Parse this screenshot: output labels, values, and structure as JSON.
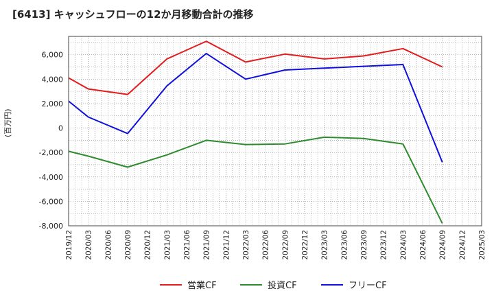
{
  "chart_data": {
    "type": "line",
    "title": "[6413]  キャッシュフローの12か月移動合計の推移",
    "ylabel": "(百万円)",
    "xlabel": "",
    "ylim": [
      -8000,
      7500
    ],
    "yticks": [
      -8000,
      -6000,
      -4000,
      -2000,
      0,
      2000,
      4000,
      6000
    ],
    "ytick_labels": [
      "-8,000",
      "-6,000",
      "-4,000",
      "-2,000",
      "0",
      "2,000",
      "4,000",
      "6,000"
    ],
    "categories": [
      "2019/12",
      "2020/03",
      "2020/06",
      "2020/09",
      "2020/12",
      "2021/03",
      "2021/06",
      "2021/09",
      "2021/12",
      "2022/03",
      "2022/06",
      "2022/09",
      "2022/12",
      "2023/03",
      "2023/06",
      "2023/09",
      "2023/12",
      "2024/03",
      "2024/06",
      "2024/09",
      "2024/12",
      "2025/03"
    ],
    "grid": true,
    "legend_position": "bottom",
    "series": [
      {
        "name": "営業CF",
        "color": "#e41a1c",
        "values": [
          4100,
          3200,
          null,
          2750,
          null,
          5650,
          null,
          7100,
          null,
          5400,
          null,
          6050,
          null,
          5650,
          null,
          5900,
          null,
          6500,
          null,
          5000,
          null,
          null
        ]
      },
      {
        "name": "投資CF",
        "color": "#2e8b2e",
        "values": [
          -1900,
          -2300,
          null,
          -3200,
          null,
          -2200,
          null,
          -1000,
          null,
          -1350,
          null,
          -1300,
          null,
          -750,
          null,
          -850,
          null,
          -1300,
          null,
          -7800,
          null,
          null
        ]
      },
      {
        "name": "フリーCF",
        "color": "#1010dd",
        "values": [
          2200,
          900,
          null,
          -450,
          null,
          3450,
          null,
          6100,
          null,
          4000,
          null,
          4750,
          null,
          4900,
          null,
          5050,
          null,
          5200,
          null,
          -2800,
          null,
          null
        ]
      }
    ]
  }
}
